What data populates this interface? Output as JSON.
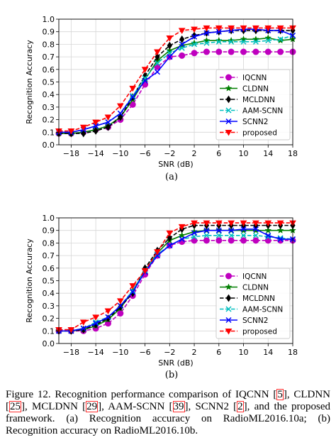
{
  "chart_data": [
    {
      "type": "line",
      "panel_label": "(a)",
      "xlabel": "SNR (dB)",
      "ylabel": "Recognition Accuracy",
      "xlim": [
        -20,
        18
      ],
      "ylim": [
        0,
        1.0
      ],
      "xticks": [
        -18,
        -14,
        -10,
        -6,
        -2,
        2,
        6,
        10,
        14,
        18
      ],
      "yticks": [
        0.0,
        0.1,
        0.2,
        0.3,
        0.4,
        0.5,
        0.6,
        0.7,
        0.8,
        0.9,
        1.0
      ],
      "grid": true,
      "legend_position": "lower-right",
      "x": [
        -20,
        -18,
        -16,
        -14,
        -12,
        -10,
        -8,
        -6,
        -4,
        -2,
        0,
        2,
        4,
        6,
        8,
        10,
        12,
        14,
        16,
        18
      ],
      "series": [
        {
          "name": "IQCNN",
          "color": "#bf00bf",
          "marker": "circle",
          "dash": "dash",
          "values": [
            0.09,
            0.09,
            0.1,
            0.12,
            0.14,
            0.2,
            0.32,
            0.48,
            0.62,
            0.7,
            0.71,
            0.73,
            0.74,
            0.74,
            0.74,
            0.74,
            0.74,
            0.74,
            0.74,
            0.74
          ]
        },
        {
          "name": "CLDNN",
          "color": "#007f00",
          "marker": "star",
          "dash": "solid",
          "values": [
            0.09,
            0.09,
            0.1,
            0.12,
            0.15,
            0.22,
            0.36,
            0.52,
            0.67,
            0.75,
            0.79,
            0.81,
            0.83,
            0.83,
            0.83,
            0.84,
            0.84,
            0.85,
            0.83,
            0.84
          ]
        },
        {
          "name": "MCLDNN",
          "color": "#000000",
          "marker": "diamond",
          "dash": "dash",
          "values": [
            0.09,
            0.09,
            0.09,
            0.11,
            0.14,
            0.22,
            0.38,
            0.55,
            0.7,
            0.79,
            0.84,
            0.87,
            0.89,
            0.9,
            0.91,
            0.91,
            0.91,
            0.91,
            0.91,
            0.91
          ]
        },
        {
          "name": "AAM-SCNN",
          "color": "#00bfbf",
          "marker": "x",
          "dash": "dash",
          "values": [
            0.1,
            0.1,
            0.12,
            0.15,
            0.18,
            0.25,
            0.39,
            0.53,
            0.65,
            0.73,
            0.77,
            0.8,
            0.81,
            0.82,
            0.82,
            0.82,
            0.82,
            0.83,
            0.84,
            0.87
          ]
        },
        {
          "name": "SCNN2",
          "color": "#0000ff",
          "marker": "x",
          "dash": "solid",
          "values": [
            0.1,
            0.1,
            0.12,
            0.15,
            0.18,
            0.25,
            0.38,
            0.51,
            0.58,
            0.7,
            0.8,
            0.86,
            0.89,
            0.9,
            0.91,
            0.92,
            0.92,
            0.91,
            0.91,
            0.87
          ]
        },
        {
          "name": "proposed",
          "color": "#ff0000",
          "marker": "triangle-down",
          "dash": "dash",
          "values": [
            0.11,
            0.11,
            0.14,
            0.18,
            0.22,
            0.31,
            0.45,
            0.6,
            0.74,
            0.85,
            0.91,
            0.92,
            0.93,
            0.93,
            0.93,
            0.93,
            0.93,
            0.93,
            0.93,
            0.93
          ]
        }
      ]
    },
    {
      "type": "line",
      "panel_label": "(b)",
      "xlabel": "SNR (dB)",
      "ylabel": "Recognition Accuracy",
      "xlim": [
        -20,
        18
      ],
      "ylim": [
        0,
        1.0
      ],
      "xticks": [
        -18,
        -14,
        -10,
        -6,
        -2,
        2,
        6,
        10,
        14,
        18
      ],
      "yticks": [
        0.0,
        0.1,
        0.2,
        0.3,
        0.4,
        0.5,
        0.6,
        0.7,
        0.8,
        0.9,
        1.0
      ],
      "grid": true,
      "legend_position": "lower-right",
      "x": [
        -20,
        -18,
        -16,
        -14,
        -12,
        -10,
        -8,
        -6,
        -4,
        -2,
        0,
        2,
        4,
        6,
        8,
        10,
        12,
        14,
        16,
        18
      ],
      "series": [
        {
          "name": "IQCNN",
          "color": "#bf00bf",
          "marker": "circle",
          "dash": "dash",
          "values": [
            0.1,
            0.1,
            0.1,
            0.12,
            0.16,
            0.24,
            0.38,
            0.55,
            0.7,
            0.78,
            0.81,
            0.82,
            0.82,
            0.82,
            0.82,
            0.82,
            0.82,
            0.82,
            0.82,
            0.82
          ]
        },
        {
          "name": "CLDNN",
          "color": "#007f00",
          "marker": "star",
          "dash": "solid",
          "values": [
            0.1,
            0.1,
            0.11,
            0.14,
            0.19,
            0.28,
            0.42,
            0.58,
            0.72,
            0.82,
            0.86,
            0.89,
            0.9,
            0.9,
            0.9,
            0.9,
            0.9,
            0.9,
            0.9,
            0.9
          ]
        },
        {
          "name": "MCLDNN",
          "color": "#000000",
          "marker": "diamond",
          "dash": "dash",
          "values": [
            0.1,
            0.1,
            0.11,
            0.15,
            0.2,
            0.29,
            0.4,
            0.6,
            0.74,
            0.84,
            0.91,
            0.94,
            0.94,
            0.94,
            0.94,
            0.94,
            0.94,
            0.94,
            0.94,
            0.94
          ]
        },
        {
          "name": "AAM-SCNN",
          "color": "#00bfbf",
          "marker": "x",
          "dash": "dash",
          "values": [
            0.1,
            0.1,
            0.12,
            0.17,
            0.21,
            0.3,
            0.42,
            0.58,
            0.71,
            0.78,
            0.83,
            0.85,
            0.86,
            0.86,
            0.86,
            0.86,
            0.86,
            0.85,
            0.84,
            0.83
          ]
        },
        {
          "name": "SCNN2",
          "color": "#0000ff",
          "marker": "x",
          "dash": "solid",
          "values": [
            0.1,
            0.1,
            0.12,
            0.16,
            0.21,
            0.3,
            0.41,
            0.57,
            0.7,
            0.78,
            0.83,
            0.88,
            0.9,
            0.9,
            0.9,
            0.91,
            0.91,
            0.86,
            0.83,
            0.83
          ]
        },
        {
          "name": "proposed",
          "color": "#ff0000",
          "marker": "triangle-down",
          "dash": "dash",
          "values": [
            0.11,
            0.11,
            0.17,
            0.21,
            0.26,
            0.34,
            0.46,
            0.58,
            0.73,
            0.88,
            0.93,
            0.96,
            0.96,
            0.96,
            0.96,
            0.96,
            0.96,
            0.96,
            0.96,
            0.96
          ]
        }
      ]
    }
  ],
  "caption": {
    "prefix": "Figure 12.  Recognition performance comparison of IQCNN ",
    "ref1": "5",
    "mid1": ", CLDNN ",
    "ref2": "25",
    "mid2": ", MCLDNN ",
    "ref3": "29",
    "mid3": ", AAM-SCNN ",
    "ref4": "39",
    "mid4": ", SCNN2 ",
    "ref5": "2",
    "suffix": ", and the proposed framework. (a) Recognition accuracy on RadioML2016.10a; (b) Recognition accuracy on RadioML2016.10b."
  }
}
